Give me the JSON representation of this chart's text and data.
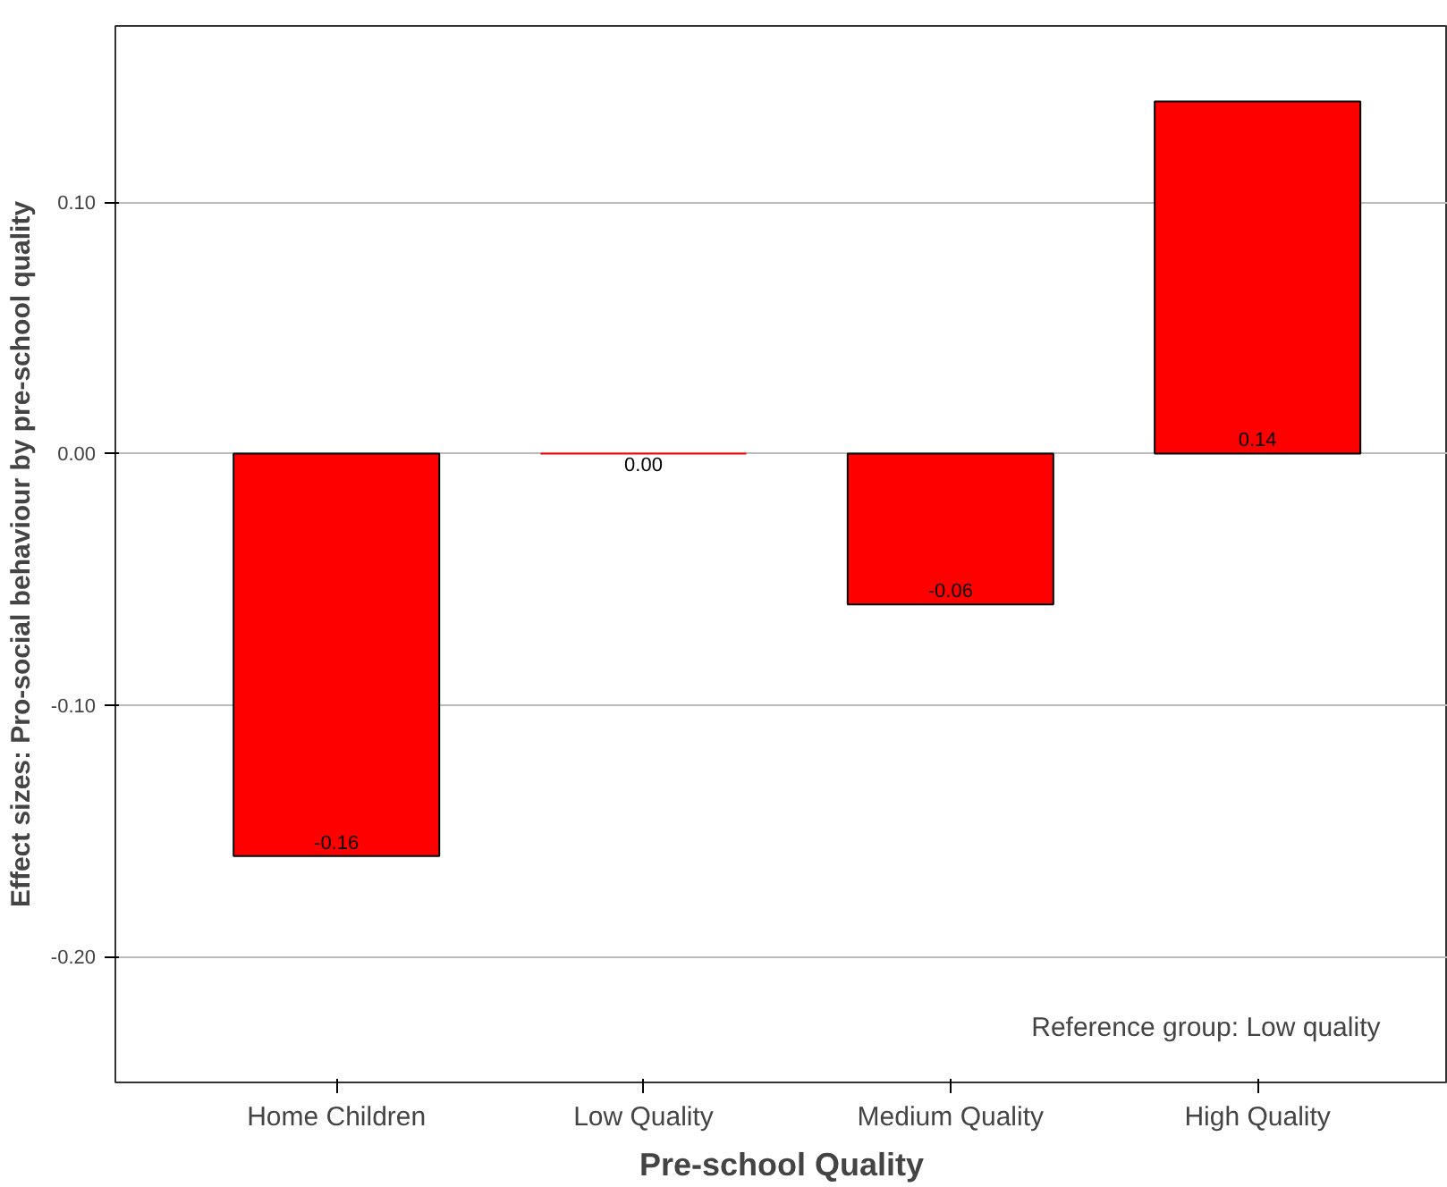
{
  "chart_data": {
    "type": "bar",
    "xlabel": "Pre-school Quality",
    "ylabel": "Effect sizes: Pro-social behaviour by pre-school quality",
    "categories": [
      "Home Children",
      "Low Quality",
      "Medium Quality",
      "High Quality"
    ],
    "values": [
      -0.16,
      0.0,
      -0.06,
      0.14
    ],
    "color": "#ff0000",
    "ylim": [
      -0.25,
      0.17
    ],
    "yticks": [
      {
        "value": 0.1,
        "label": "0.10"
      },
      {
        "value": 0.0,
        "label": "0.00"
      },
      {
        "value": -0.1,
        "label": "-0.10"
      },
      {
        "value": -0.2,
        "label": "-0.20"
      }
    ],
    "value_labels": [
      "-0.16",
      "0.00",
      "-0.06",
      "0.14"
    ],
    "grid": "y",
    "annotations": [
      "Reference group: Low quality"
    ]
  }
}
